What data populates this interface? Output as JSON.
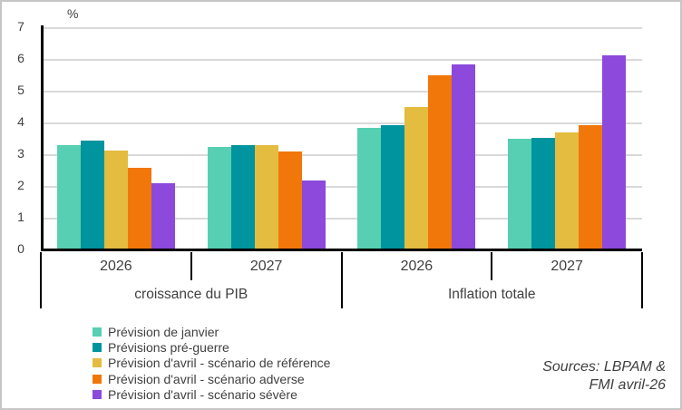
{
  "chart_data": {
    "type": "bar",
    "title": "",
    "ylabel": "%",
    "xlabel": "",
    "ylim": [
      0,
      7
    ],
    "yticks": [
      0,
      1,
      2,
      3,
      4,
      5,
      6,
      7
    ],
    "grid": true,
    "legend_position": "bottom-left",
    "categories": [
      "croissance du PIB",
      "Inflation totale"
    ],
    "x_groups": [
      {
        "category": "croissance du PIB",
        "year": "2026"
      },
      {
        "category": "croissance du PIB",
        "year": "2027"
      },
      {
        "category": "Inflation totale",
        "year": "2026"
      },
      {
        "category": "Inflation totale",
        "year": "2027"
      }
    ],
    "series": [
      {
        "name": "Prévision de janvier",
        "color": "#57cfb3",
        "values": [
          3.25,
          3.2,
          3.8,
          3.45
        ]
      },
      {
        "name": "Prévisions pré-guerre",
        "color": "#00949e",
        "values": [
          3.4,
          3.25,
          3.9,
          3.5
        ]
      },
      {
        "name": "Prévision d'avril - scénario de référence",
        "color": "#e3bc40",
        "values": [
          3.1,
          3.25,
          4.45,
          3.65
        ]
      },
      {
        "name": "Prévision d'avril - scénario adverse",
        "color": "#f1770a",
        "values": [
          2.55,
          3.05,
          5.45,
          3.9
        ]
      },
      {
        "name": "Prévision d'avril - scénario sévère",
        "color": "#8c49dc",
        "values": [
          2.05,
          2.15,
          5.8,
          6.1
        ]
      }
    ]
  },
  "source_note": {
    "line1": "Sources: LBPAM &",
    "line2": "FMI avril-26"
  }
}
